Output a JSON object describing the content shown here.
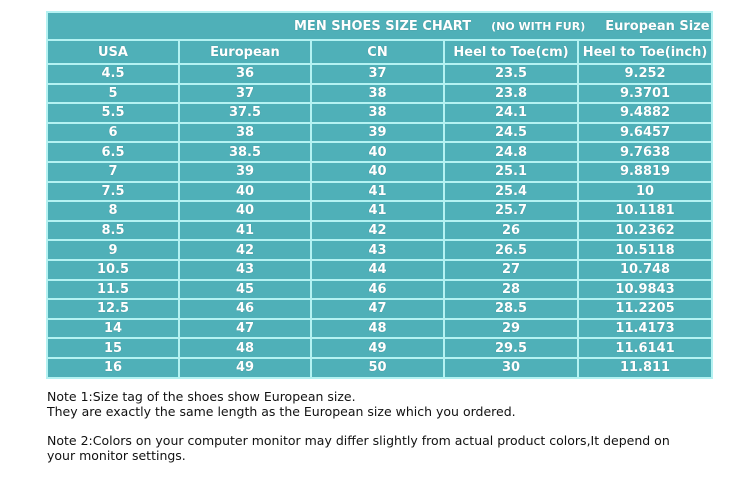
{
  "chart": {
    "title": "MEN SHOES SIZE CHART",
    "subtitle": "(NO WITH FUR)",
    "size_label": "European Size",
    "columns": [
      "USA",
      "European",
      "CN",
      "Heel to Toe(cm)",
      "Heel to Toe(inch)"
    ],
    "rows": [
      [
        "4.5",
        "36",
        "37",
        "23.5",
        "9.252"
      ],
      [
        "5",
        "37",
        "38",
        "23.8",
        "9.3701"
      ],
      [
        "5.5",
        "37.5",
        "38",
        "24.1",
        "9.4882"
      ],
      [
        "6",
        "38",
        "39",
        "24.5",
        "9.6457"
      ],
      [
        "6.5",
        "38.5",
        "40",
        "24.8",
        "9.7638"
      ],
      [
        "7",
        "39",
        "40",
        "25.1",
        "9.8819"
      ],
      [
        "7.5",
        "40",
        "41",
        "25.4",
        "10"
      ],
      [
        "8",
        "40",
        "41",
        "25.7",
        "10.1181"
      ],
      [
        "8.5",
        "41",
        "42",
        "26",
        "10.2362"
      ],
      [
        "9",
        "42",
        "43",
        "26.5",
        "10.5118"
      ],
      [
        "10.5",
        "43",
        "44",
        "27",
        "10.748"
      ],
      [
        "11.5",
        "45",
        "46",
        "28",
        "10.9843"
      ],
      [
        "12.5",
        "46",
        "47",
        "28.5",
        "11.2205"
      ],
      [
        "14",
        "47",
        "48",
        "29",
        "11.4173"
      ],
      [
        "15",
        "48",
        "49",
        "29.5",
        "11.6141"
      ],
      [
        "16",
        "49",
        "50",
        "30",
        "11.811"
      ]
    ],
    "colors": {
      "cell_bg": "#4fb0b8",
      "border": "#b4f2f2",
      "text": "#ffffff"
    }
  },
  "notes": {
    "note1_line1": "Note 1:Size tag of the shoes show European size.",
    "note1_line2": "They are exactly the same length as the European size which you ordered.",
    "note2_line1": "Note 2:Colors on your computer monitor may differ slightly from actual product colors,It depend on",
    "note2_line2": "your monitor settings."
  }
}
